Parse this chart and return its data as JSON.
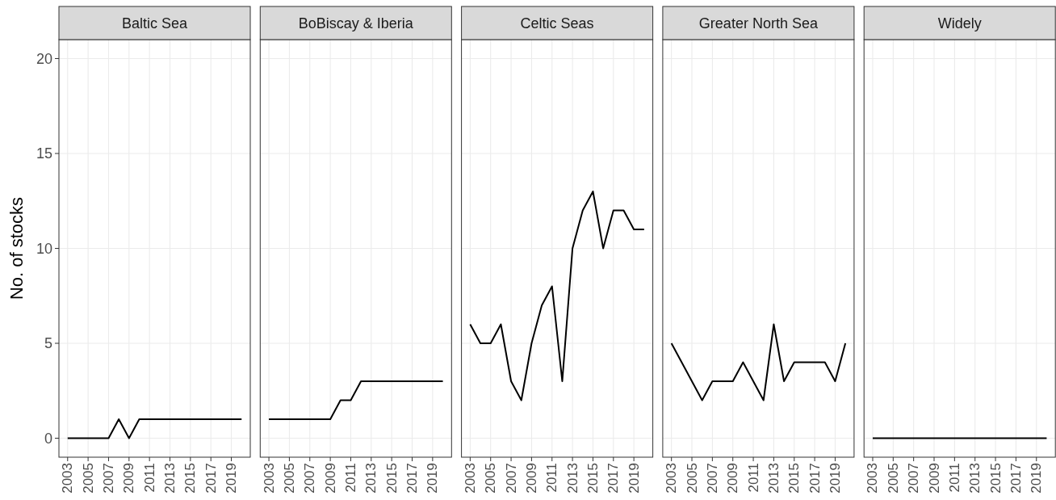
{
  "chart_data": [
    {
      "type": "line",
      "title": "Baltic Sea",
      "ylabel": "No. of stocks",
      "x": [
        2003,
        2004,
        2005,
        2006,
        2007,
        2008,
        2009,
        2010,
        2011,
        2012,
        2013,
        2014,
        2015,
        2016,
        2017,
        2018,
        2019,
        2020
      ],
      "values": [
        0,
        0,
        0,
        0,
        0,
        1,
        0,
        1,
        1,
        1,
        1,
        1,
        1,
        1,
        1,
        1,
        1,
        1
      ],
      "color": "#000000",
      "xlim": [
        2002.15,
        2020.85
      ],
      "xticks": [
        2003,
        2005,
        2007,
        2009,
        2011,
        2013,
        2015,
        2017,
        2019
      ],
      "ylim": [
        -1,
        21
      ],
      "yticks": [
        0,
        5,
        10,
        15,
        20
      ],
      "grid": true
    },
    {
      "type": "line",
      "title": "BoBiscay & Iberia",
      "x": [
        2003,
        2004,
        2005,
        2006,
        2007,
        2008,
        2009,
        2010,
        2011,
        2012,
        2013,
        2014,
        2015,
        2016,
        2017,
        2018,
        2019,
        2020
      ],
      "values": [
        1,
        1,
        1,
        1,
        1,
        1,
        1,
        2,
        2,
        3,
        3,
        3,
        3,
        3,
        3,
        3,
        3,
        3
      ],
      "color": "#000000",
      "xlim": [
        2002.15,
        2020.85
      ],
      "xticks": [
        2003,
        2005,
        2007,
        2009,
        2011,
        2013,
        2015,
        2017,
        2019
      ],
      "ylim": [
        -1,
        21
      ],
      "yticks": [
        0,
        5,
        10,
        15,
        20
      ],
      "grid": true,
      "tick_labels": "x"
    },
    {
      "type": "line",
      "title": "Celtic Seas",
      "x": [
        2003,
        2004,
        2005,
        2006,
        2007,
        2008,
        2009,
        2010,
        2011,
        2012,
        2013,
        2014,
        2015,
        2016,
        2017,
        2018,
        2019,
        2020
      ],
      "values": [
        6,
        5,
        5,
        6,
        3,
        2,
        5,
        7,
        8,
        3,
        10,
        12,
        13,
        10,
        12,
        12,
        11,
        11
      ],
      "color": "#000000",
      "xlim": [
        2002.15,
        2020.85
      ],
      "xticks": [
        2003,
        2005,
        2007,
        2009,
        2011,
        2013,
        2015,
        2017,
        2019
      ],
      "ylim": [
        -1,
        21
      ],
      "yticks": [
        0,
        5,
        10,
        15,
        20
      ],
      "grid": true,
      "tick_labels": "x"
    },
    {
      "type": "line",
      "title": "Greater North Sea",
      "x": [
        2003,
        2004,
        2005,
        2006,
        2007,
        2008,
        2009,
        2010,
        2011,
        2012,
        2013,
        2014,
        2015,
        2016,
        2017,
        2018,
        2019,
        2020
      ],
      "values": [
        5,
        4,
        3,
        2,
        3,
        3,
        3,
        4,
        3,
        2,
        6,
        3,
        4,
        4,
        4,
        4,
        3,
        5
      ],
      "color": "#000000",
      "xlim": [
        2002.15,
        2020.85
      ],
      "xticks": [
        2003,
        2005,
        2007,
        2009,
        2011,
        2013,
        2015,
        2017,
        2019
      ],
      "ylim": [
        -1,
        21
      ],
      "yticks": [
        0,
        5,
        10,
        15,
        20
      ],
      "grid": true,
      "tick_labels": "x"
    },
    {
      "type": "line",
      "title": "Widely",
      "x": [
        2003,
        2004,
        2005,
        2006,
        2007,
        2008,
        2009,
        2010,
        2011,
        2012,
        2013,
        2014,
        2015,
        2016,
        2017,
        2018,
        2019,
        2020
      ],
      "values": [
        0,
        0,
        0,
        0,
        0,
        0,
        0,
        0,
        0,
        0,
        0,
        0,
        0,
        0,
        0,
        0,
        0,
        0
      ],
      "color": "#000000",
      "xlim": [
        2002.15,
        2020.85
      ],
      "xticks": [
        2003,
        2005,
        2007,
        2009,
        2011,
        2013,
        2015,
        2017,
        2019
      ],
      "ylim": [
        -1,
        21
      ],
      "yticks": [
        0,
        5,
        10,
        15,
        20
      ],
      "grid": true,
      "tick_labels": "x"
    }
  ]
}
